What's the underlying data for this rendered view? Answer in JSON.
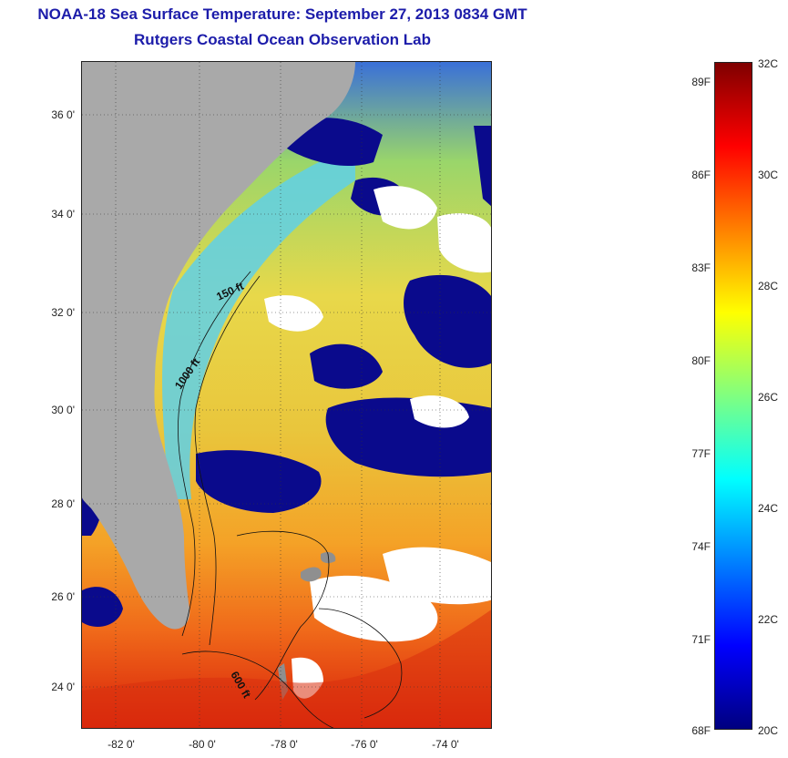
{
  "header": {
    "title_line_1": "NOAA-18 Sea Surface Temperature:  September 27, 2013 0834 GMT",
    "title_line_2": "Rutgers Coastal Ocean Observation Lab"
  },
  "map": {
    "lat_labels": [
      "36 0'",
      "34 0'",
      "32 0'",
      "30 0'",
      "28 0'",
      "26 0'",
      "24 0'"
    ],
    "lon_labels": [
      "-82 0'",
      "-80 0'",
      "-78 0'",
      "-76 0'",
      "-74 0'"
    ],
    "contour_labels": [
      "150 ft",
      "1000 ft",
      "600 ft"
    ],
    "colors": {
      "land": "#a9a9a9",
      "cloud": "#ffffff",
      "cold_patch": "#0a0a8c",
      "coastal": "#4dc8f0",
      "mid": "#e8d84a",
      "warm": "#f47a1f",
      "hot": "#d81f0a"
    }
  },
  "colorbar": {
    "fahrenheit_labels": [
      "89F",
      "86F",
      "83F",
      "80F",
      "77F",
      "74F",
      "71F",
      "68F"
    ],
    "celsius_labels": [
      "32C",
      "30C",
      "28C",
      "26C",
      "24C",
      "22C",
      "20C"
    ],
    "range_c": [
      20,
      32
    ],
    "gradient": [
      "#00007f",
      "#0000ff",
      "#0080ff",
      "#00ffff",
      "#80ff80",
      "#ffff00",
      "#ff8000",
      "#ff0000",
      "#7f0000"
    ]
  }
}
